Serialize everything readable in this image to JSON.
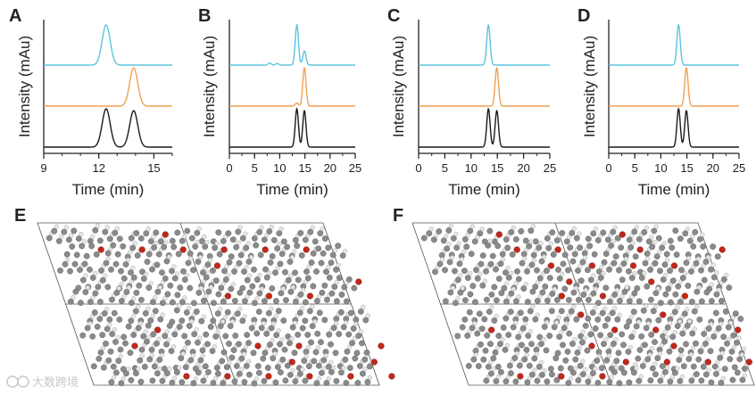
{
  "figure": {
    "colors": {
      "cyan": "#5bc4dd",
      "orange": "#f0a052",
      "black": "#1a1a1a",
      "oxygen": "#c0281c",
      "carbon": "#8a8a8a",
      "hydrogen": "#e6e6e6"
    },
    "crystal_panels": [
      {
        "letter": "E"
      },
      {
        "letter": "F"
      }
    ],
    "watermark": "大数跨境"
  },
  "chart_data": [
    {
      "type": "line",
      "panel": "A",
      "xlabel": "Time (min)",
      "ylabel": "Intensity (mAu)",
      "xlim": [
        9,
        16
      ],
      "xticks": [
        9,
        12,
        15
      ],
      "series": [
        {
          "color": "#5bc4dd",
          "peaks": [
            [
              12.4,
              0.22,
              1.0
            ]
          ]
        },
        {
          "color": "#f0a052",
          "peaks": [
            [
              13.9,
              0.22,
              1.0
            ]
          ]
        },
        {
          "color": "#1a1a1a",
          "peaks": [
            [
              12.4,
              0.22,
              1.0
            ],
            [
              13.9,
              0.22,
              0.95
            ]
          ]
        }
      ]
    },
    {
      "type": "line",
      "panel": "B",
      "xlabel": "Time (min)",
      "ylabel": "Intensity (mAu)",
      "xlim": [
        0,
        25
      ],
      "xticks": [
        0,
        5,
        10,
        15,
        20,
        25
      ],
      "series": [
        {
          "color": "#5bc4dd",
          "peaks": [
            [
              13.4,
              0.32,
              1.0
            ],
            [
              14.9,
              0.32,
              0.35
            ],
            [
              8.0,
              0.3,
              0.05
            ],
            [
              9.5,
              0.3,
              0.04
            ]
          ]
        },
        {
          "color": "#f0a052",
          "peaks": [
            [
              14.9,
              0.32,
              1.0
            ],
            [
              13.4,
              0.32,
              0.08
            ]
          ]
        },
        {
          "color": "#1a1a1a",
          "peaks": [
            [
              13.4,
              0.32,
              1.0
            ],
            [
              14.9,
              0.32,
              0.95
            ]
          ]
        }
      ]
    },
    {
      "type": "line",
      "panel": "C",
      "xlabel": "Time (min)",
      "ylabel": "Intensity (mAu)",
      "xlim": [
        0,
        25
      ],
      "xticks": [
        0,
        5,
        10,
        15,
        20,
        25
      ],
      "series": [
        {
          "color": "#5bc4dd",
          "peaks": [
            [
              13.3,
              0.32,
              1.0
            ]
          ]
        },
        {
          "color": "#f0a052",
          "peaks": [
            [
              14.9,
              0.32,
              1.0
            ]
          ]
        },
        {
          "color": "#1a1a1a",
          "peaks": [
            [
              13.3,
              0.32,
              1.0
            ],
            [
              14.9,
              0.32,
              0.95
            ]
          ]
        }
      ]
    },
    {
      "type": "line",
      "panel": "D",
      "xlabel": "Time (min)",
      "ylabel": "Intensity (mAu)",
      "xlim": [
        0,
        25
      ],
      "xticks": [
        0,
        5,
        10,
        15,
        20,
        25
      ],
      "series": [
        {
          "color": "#5bc4dd",
          "peaks": [
            [
              13.4,
              0.32,
              1.0
            ]
          ]
        },
        {
          "color": "#f0a052",
          "peaks": [
            [
              14.9,
              0.32,
              1.0
            ]
          ]
        },
        {
          "color": "#1a1a1a",
          "peaks": [
            [
              13.4,
              0.32,
              1.0
            ],
            [
              14.9,
              0.32,
              0.95
            ]
          ]
        }
      ]
    }
  ]
}
